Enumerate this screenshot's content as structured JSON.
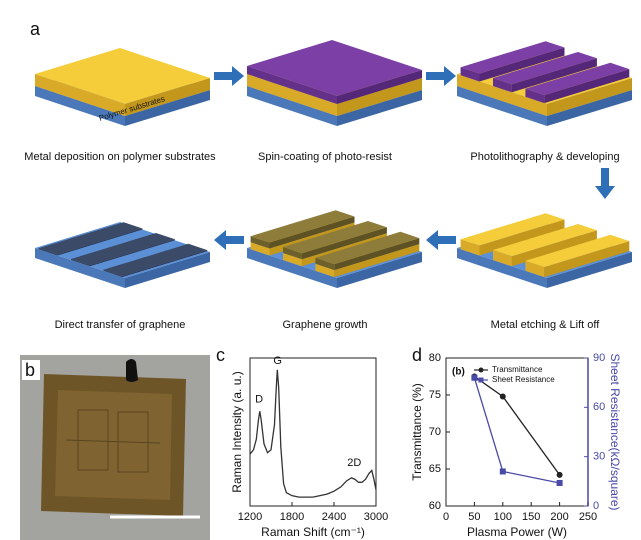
{
  "panel_labels": [
    "a",
    "b",
    "c",
    "d"
  ],
  "substrate_label": "Polymer substrates",
  "steps": [
    "Metal deposition on polymer substrates",
    "Spin-coating of photo-resist",
    "Photolithography & developing",
    "Metal etching & Lift off",
    "Graphene growth",
    "Direct transfer of graphene"
  ],
  "chart_data": [
    {
      "type": "line",
      "x_label": "Raman Shift (cm⁻¹)",
      "y_label": "Raman Intensity (a. u.)",
      "annotations": [
        "D",
        "G",
        "2D"
      ],
      "color": "#333333",
      "x": [
        1200,
        1250,
        1290,
        1320,
        1340,
        1360,
        1400,
        1450,
        1500,
        1550,
        1570,
        1590,
        1610,
        1640,
        1680,
        1720,
        1800,
        1900,
        2000,
        2100,
        2200,
        2300,
        2400,
        2500,
        2580,
        2650,
        2700,
        2750,
        2800,
        2850,
        2900,
        2940,
        2970,
        3000
      ],
      "values": [
        35,
        38,
        45,
        58,
        64,
        58,
        42,
        36,
        38,
        55,
        75,
        92,
        80,
        40,
        15,
        9,
        7,
        6,
        6,
        6,
        7,
        8,
        10,
        13,
        17,
        19,
        18,
        16,
        16,
        18,
        22,
        24,
        18,
        11
      ],
      "xlim": [
        1200,
        3000
      ],
      "xticks": [
        1200,
        1800,
        2400,
        3000
      ],
      "ylim": [
        0,
        100
      ]
    },
    {
      "type": "line",
      "x_label": "Plasma Power (W)",
      "y_label": "Transmittance (%)",
      "y2_label": "Sheet Resistance(kΩ/square)",
      "legend_title": "(b)",
      "x": [
        50,
        100,
        200
      ],
      "series": [
        {
          "name": "Transmittance",
          "color": "#222222",
          "marker": "circle",
          "values": [
            77.5,
            74.8,
            64.2
          ]
        },
        {
          "name": "Sheet Resistance",
          "color": "#4a4aa8",
          "marker": "square",
          "axis": "y2",
          "values": [
            78,
            21,
            14
          ]
        }
      ],
      "xlim": [
        0,
        250
      ],
      "xticks": [
        0,
        50,
        100,
        150,
        200,
        250
      ],
      "ylim": [
        60,
        80
      ],
      "yticks": [
        60,
        65,
        70,
        75,
        80
      ],
      "y2lim": [
        0,
        90
      ],
      "y2ticks": [
        0,
        30,
        60,
        90
      ]
    }
  ]
}
